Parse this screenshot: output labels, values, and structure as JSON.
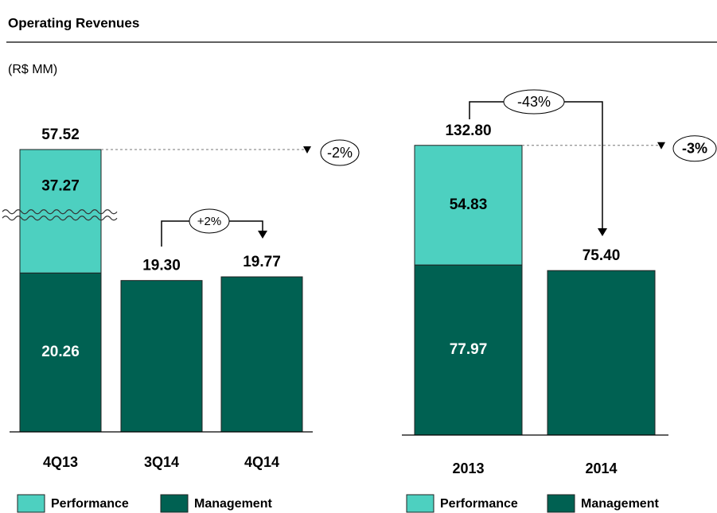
{
  "header": {
    "title": "Operating Revenues",
    "unit": "(R$ MM)"
  },
  "chart_data": [
    {
      "type": "bar",
      "stacked": true,
      "axis_break": true,
      "categories": [
        "4Q13",
        "3Q14",
        "4Q14"
      ],
      "series": [
        {
          "name": "Performance",
          "color": "#4dd0c0",
          "values": [
            37.27,
            null,
            null
          ]
        },
        {
          "name": "Management",
          "color": "#006152",
          "values": [
            20.26,
            19.3,
            19.77
          ]
        }
      ],
      "totals": {
        "values": [
          57.52,
          19.3,
          19.77
        ],
        "value_labels": [
          "57.52",
          "19.30",
          "19.77"
        ]
      },
      "ylim": [
        0,
        36
      ],
      "annotations": [
        "+2%",
        "-2%"
      ]
    },
    {
      "type": "bar",
      "stacked": true,
      "axis_break": false,
      "categories": [
        "2013",
        "2014"
      ],
      "series": [
        {
          "name": "Performance",
          "color": "#4dd0c0",
          "values": [
            54.83,
            null
          ]
        },
        {
          "name": "Management",
          "color": "#006152",
          "values": [
            77.97,
            75.4
          ]
        }
      ],
      "totals": {
        "values": [
          132.8,
          75.4
        ],
        "value_labels": [
          "132.80",
          "75.40"
        ]
      },
      "ylim": [
        0,
        140
      ],
      "annotations": [
        "-43%",
        "-3%"
      ]
    }
  ]
}
